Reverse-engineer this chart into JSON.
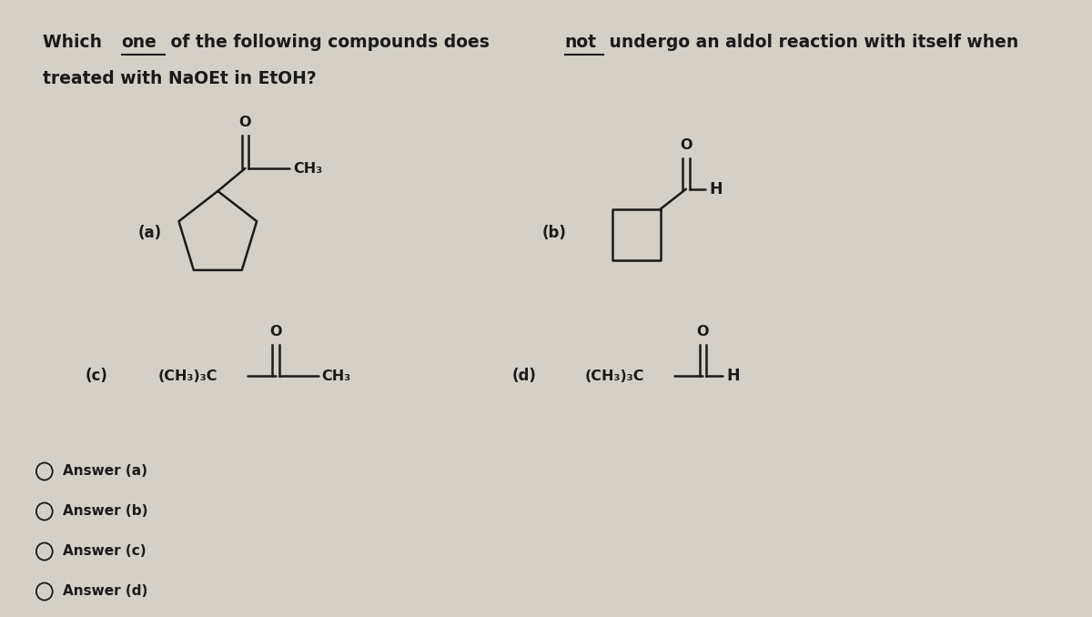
{
  "bg_color": "#d4d0c8",
  "text_color": "#1a1a1a",
  "answers": [
    "Answer (a)",
    "Answer (b)",
    "Answer (c)",
    "Answer (d)"
  ],
  "title_seg1": "Which ",
  "title_ul1": "one",
  "title_seg2": " of the following compounds does ",
  "title_ul2": "not",
  "title_seg3": " undergo an aldol reaction with itself when",
  "title_line2": "treated with NaOEt in EtOH?",
  "label_a": "(a)",
  "label_b": "(b)",
  "label_c": "(c)",
  "label_d": "(d)",
  "fontsize_title": 13.5,
  "fontsize_struct": 11.5,
  "fontsize_label": 12,
  "lw": 1.8
}
